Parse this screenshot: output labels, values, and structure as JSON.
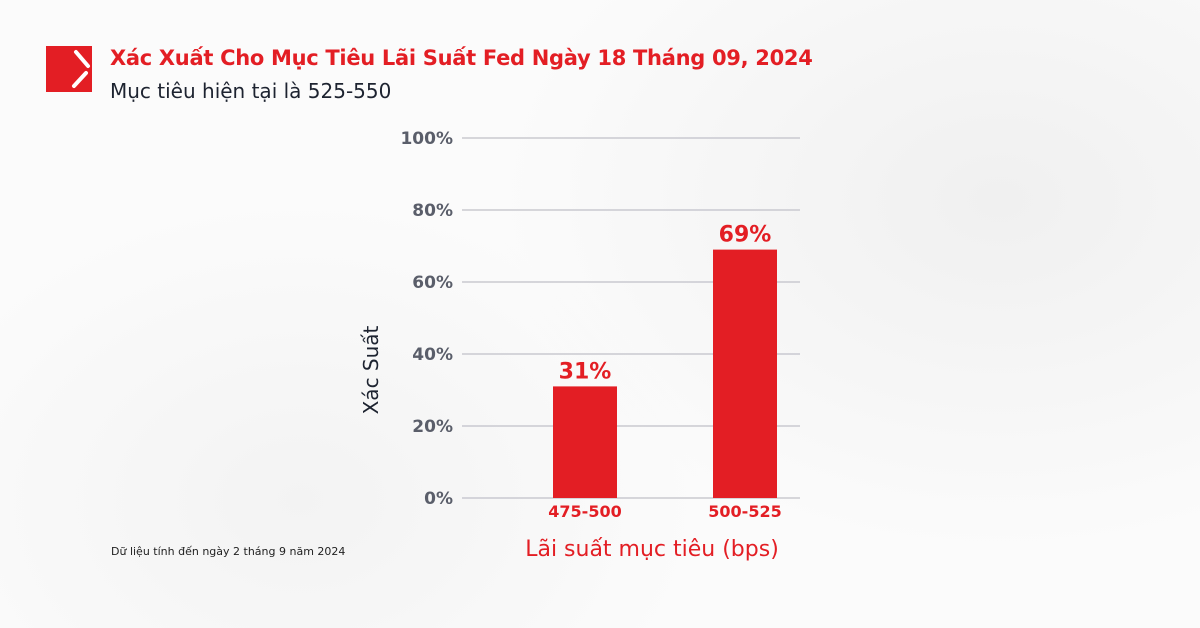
{
  "header": {
    "title": "Xác Xuất Cho Mục Tiêu Lãi Suất Fed Ngày 18 Tháng 09, 2024",
    "subtitle": "Mục tiêu hiện tại là 525-550"
  },
  "footnote": "Dữ liệu tính đến ngày 2 tháng 9 năm 2024",
  "colors": {
    "accent": "#e31e24",
    "grid": "#c9c9d0"
  },
  "chart_data": {
    "type": "bar",
    "categories": [
      "475-500",
      "500-525"
    ],
    "values": [
      31,
      69
    ],
    "data_labels": [
      "31%",
      "69%"
    ],
    "xlabel": "Lãi suất mục tiêu (bps)",
    "ylabel": "Xác Suất",
    "ylim": [
      0,
      100
    ],
    "yticks": [
      0,
      20,
      40,
      60,
      80,
      100
    ],
    "ytick_labels": [
      "0%",
      "20%",
      "40%",
      "60%",
      "80%",
      "100%"
    ],
    "grid": true
  }
}
